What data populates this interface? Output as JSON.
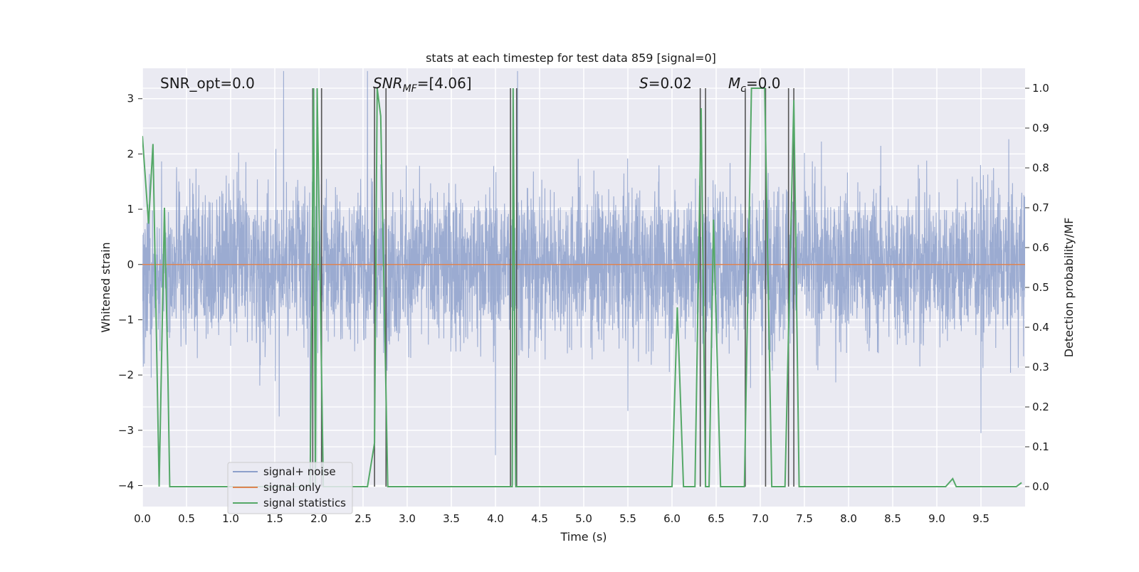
{
  "chart_data": {
    "type": "line",
    "title": "stats at each timestep for test data 859 [signal=0]",
    "xlabel": "Time (s)",
    "ylabel_left": "Whitened strain",
    "ylabel_right": "Detection probability/MF",
    "xlim": [
      0,
      10
    ],
    "ylim_left": [
      -4.38,
      3.55
    ],
    "ylim_right": [
      -0.05,
      1.05
    ],
    "x_ticks": [
      "0.0",
      "0.5",
      "1.0",
      "1.5",
      "2.0",
      "2.5",
      "3.0",
      "3.5",
      "4.0",
      "4.5",
      "5.0",
      "5.5",
      "6.0",
      "6.5",
      "7.0",
      "7.5",
      "8.0",
      "8.5",
      "9.0",
      "9.5"
    ],
    "y_left_ticks": [
      "3",
      "2",
      "1",
      "0",
      "−1",
      "−2",
      "−3",
      "−4"
    ],
    "y_left_values": [
      3,
      2,
      1,
      0,
      -1,
      -2,
      -3,
      -4
    ],
    "y_right_ticks": [
      "1.0",
      "0.9",
      "0.8",
      "0.7",
      "0.6",
      "0.5",
      "0.4",
      "0.3",
      "0.2",
      "0.1",
      "0.0"
    ],
    "y_right_values": [
      1.0,
      0.9,
      0.8,
      0.7,
      0.6,
      0.5,
      0.4,
      0.3,
      0.2,
      0.1,
      0.0
    ],
    "grid": true,
    "annotations": {
      "snr_opt": "SNR_opt=0.0",
      "snr_mf_base": "SNR",
      "snr_mf_sub": "MF",
      "snr_mf_value": "=[4.06]",
      "s_label": "S",
      "s_value": "=0.02",
      "mc_base": "M",
      "mc_sub": "c",
      "mc_value": "=0.0"
    },
    "legend": {
      "placement": "lower-left",
      "entries": [
        "signal+ noise",
        "signal only",
        "signal statistics"
      ]
    },
    "colors": {
      "noise": "#8da0cb",
      "signal_only": "#dd8452",
      "statistics": "#55a868",
      "vlines": "#555555",
      "background": "#eaeaf2"
    },
    "series": [
      {
        "name": "signal+ noise",
        "axis": "left",
        "description_range": [
          -2.5,
          3.4
        ],
        "peaks": [
          {
            "x": 1.6,
            "y": 3.5
          },
          {
            "x": 2.55,
            "y": 3.5
          },
          {
            "x": 4.25,
            "y": 3.5
          },
          {
            "x": 1.9,
            "y": -3.3
          },
          {
            "x": 4.0,
            "y": -3.45
          },
          {
            "x": 9.5,
            "y": -3.05
          },
          {
            "x": 1.55,
            "y": -2.75
          },
          {
            "x": 5.5,
            "y": -2.65
          }
        ]
      },
      {
        "name": "signal only",
        "axis": "left",
        "x": [
          0,
          10
        ],
        "y": [
          0,
          0
        ]
      },
      {
        "name": "signal statistics",
        "axis": "right",
        "x": [
          0.0,
          0.07,
          0.12,
          0.19,
          0.25,
          0.29,
          0.31,
          0.4,
          1.9,
          1.94,
          1.96,
          1.98,
          2.05,
          2.1,
          2.4,
          2.5,
          2.55,
          2.63,
          2.66,
          2.7,
          2.78,
          2.81,
          4.15,
          4.19,
          4.2,
          4.23,
          4.3,
          6.0,
          6.06,
          6.13,
          6.2,
          6.26,
          6.33,
          6.38,
          6.42,
          6.47,
          6.55,
          6.82,
          6.9,
          7.05,
          7.13,
          7.22,
          7.28,
          7.38,
          7.44,
          9.1,
          9.18,
          9.22,
          9.3,
          9.9,
          9.96
        ],
        "y": [
          0.88,
          0.66,
          0.86,
          0.0,
          0.7,
          0.27,
          0.0,
          0.0,
          0.0,
          1.0,
          0.0,
          1.0,
          0.0,
          0.0,
          0.0,
          0.0,
          0.0,
          0.11,
          1.0,
          0.93,
          0.0,
          0.0,
          0.0,
          0.0,
          1.0,
          0.0,
          0.0,
          0.0,
          0.45,
          0.0,
          0.0,
          0.0,
          0.95,
          0.0,
          0.0,
          0.67,
          0.0,
          0.0,
          1.0,
          1.0,
          0.0,
          0.0,
          0.0,
          0.97,
          0.0,
          0.0,
          0.02,
          0.0,
          0.0,
          0.0,
          0.01
        ]
      }
    ],
    "vlines_x": [
      1.93,
      2.03,
      2.63,
      2.76,
      4.17,
      4.24,
      6.32,
      6.38,
      6.83,
      7.06,
      7.32,
      7.38
    ]
  }
}
